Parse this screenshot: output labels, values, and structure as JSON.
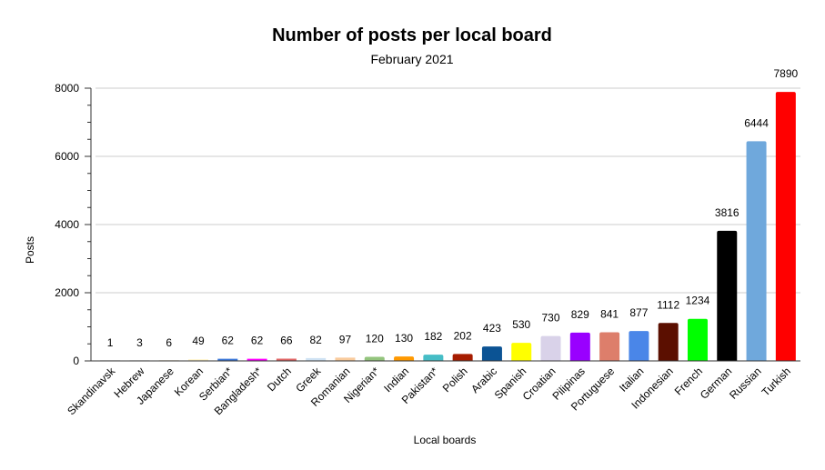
{
  "chart_data": {
    "type": "bar",
    "title": "Number of posts per local board",
    "subtitle": "February 2021",
    "xlabel": "Local boards",
    "ylabel": "Posts",
    "ylim": [
      0,
      8000
    ],
    "yticks": [
      "0",
      "2000",
      "4000",
      "6000",
      "8000"
    ],
    "grid": true,
    "categories": [
      "Skandinavsk",
      "Hebrew",
      "Japanese",
      "Korean",
      "Serbian*",
      "Bangladesh*",
      "Dutch",
      "Greek",
      "Romanian",
      "Nigerian*",
      "Indian",
      "Pakistan*",
      "Polish",
      "Arabic",
      "Spanish",
      "Croatian",
      "Pilipinas",
      "Portuguese",
      "Italian",
      "Indonesian",
      "French",
      "German",
      "Russian",
      "Turkish"
    ],
    "values": [
      1,
      3,
      6,
      49,
      62,
      62,
      66,
      82,
      97,
      120,
      130,
      182,
      202,
      423,
      530,
      730,
      829,
      841,
      877,
      1112,
      1234,
      3816,
      6444,
      7890
    ],
    "data_labels": [
      "1",
      "3",
      "6",
      "49",
      "62",
      "62",
      "66",
      "82",
      "97",
      "120",
      "130",
      "182",
      "202",
      "423",
      "530",
      "730",
      "829",
      "841",
      "877",
      "1112",
      "1234",
      "3816",
      "6444",
      "7890"
    ],
    "colors": [
      "#9e9e9e",
      "#bdbdbd",
      "#c7a97a",
      "#fff5cc",
      "#3d78d8",
      "#ff00ff",
      "#e06666",
      "#cfe2f3",
      "#f9cb9c",
      "#93c47d",
      "#ff9900",
      "#46bdc6",
      "#a61c00",
      "#0b5394",
      "#ffff00",
      "#d9d2e9",
      "#9900ff",
      "#dd7e6b",
      "#4a86e8",
      "#5b0f00",
      "#00ff00",
      "#000000",
      "#6fa8dc",
      "#ff0000"
    ]
  }
}
